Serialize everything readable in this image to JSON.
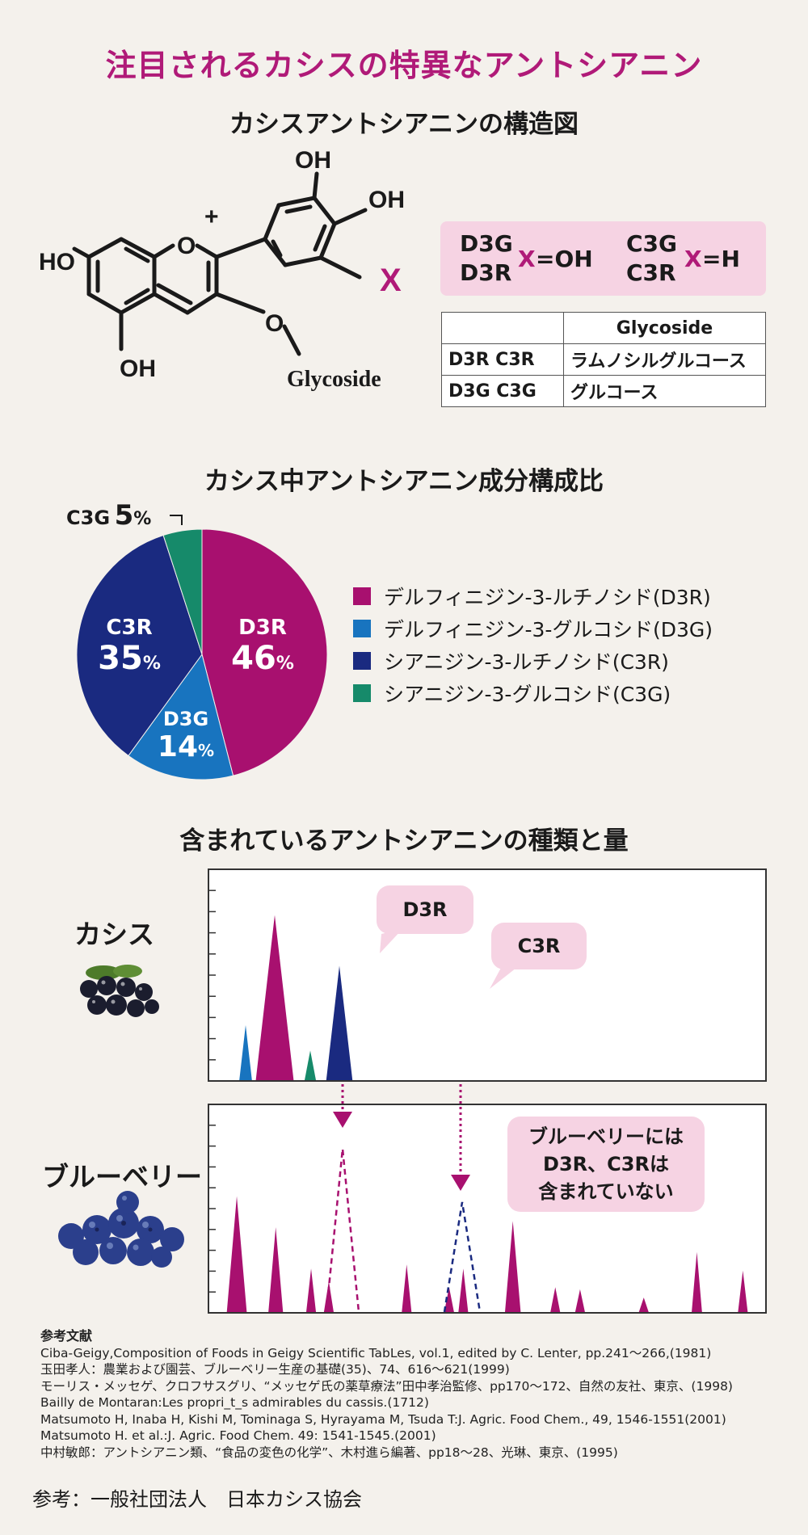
{
  "title": "注目されるカシスの特異なアントシアニン",
  "structure": {
    "heading": "カシスアントシアニンの構造図",
    "atoms": {
      "oh_top": "OH",
      "oh_right": "OH",
      "ho_left": "HO",
      "oh_bottom": "OH",
      "o_plus": "O",
      "plus": "+",
      "o_link": "O",
      "glycoside": "Glycoside",
      "x": "X"
    },
    "x_box": {
      "left_names_1": "D3G",
      "left_names_2": "D3R",
      "left_x": "X",
      "left_eq": "=OH",
      "right_names_1": "C3G",
      "right_names_2": "C3R",
      "right_x": "X",
      "right_eq": "=H"
    },
    "table": {
      "header": [
        "",
        "Glycoside"
      ],
      "rows": [
        [
          "D3R C3R",
          "ラムノシルグルコース"
        ],
        [
          "D3G C3G",
          "グルコース"
        ]
      ]
    }
  },
  "pie": {
    "heading": "カシス中アントシアニン成分構成比",
    "labels": {
      "d3r_name": "D3R",
      "d3r_num": "46",
      "d3r_pct": "%",
      "d3g_name": "D3G",
      "d3g_num": "14",
      "d3g_pct": "%",
      "c3r_name": "C3R",
      "c3r_num": "35",
      "c3r_pct": "%",
      "c3g_name": "C3G",
      "c3g_num": "5",
      "c3g_pct": "%"
    },
    "legend": [
      {
        "label": "デルフィニジン-3-ルチノシド(D3R)",
        "color": "#a8106f"
      },
      {
        "label": "デルフィニジン-3-グルコシド(D3G)",
        "color": "#1874bf"
      },
      {
        "label": "シアニジン-3-ルチノシド(C3R)",
        "color": "#1a2a80"
      },
      {
        "label": "シアニジン-3-グルコシド(C3G)",
        "color": "#168a6a"
      }
    ]
  },
  "chart_data": [
    {
      "type": "pie",
      "title": "カシス中アントシアニン成分構成比",
      "categories": [
        "D3R",
        "D3G",
        "C3R",
        "C3G"
      ],
      "values": [
        46,
        14,
        35,
        5
      ],
      "colors": [
        "#a8106f",
        "#1874bf",
        "#1a2a80",
        "#168a6a"
      ],
      "legend_position": "right"
    },
    {
      "type": "area",
      "title": "含まれているアントシアニンの種類と量",
      "panels": [
        {
          "name": "カシス",
          "peaks": [
            {
              "x": 0.23,
              "y": 0.26,
              "color": "#1874bf"
            },
            {
              "x": 0.41,
              "y": 0.78,
              "color": "#a8106f",
              "label": "D3R"
            },
            {
              "x": 0.63,
              "y": 0.14,
              "color": "#168a6a"
            },
            {
              "x": 0.81,
              "y": 0.54,
              "color": "#1a2a80",
              "label": "C3R"
            }
          ]
        },
        {
          "name": "ブルーベリー",
          "peaks": [
            {
              "x": 0.08,
              "y": 0.56
            },
            {
              "x": 0.19,
              "y": 0.41
            },
            {
              "x": 0.29,
              "y": 0.21
            },
            {
              "x": 0.34,
              "y": 0.15
            },
            {
              "x": 0.56,
              "y": 0.23
            },
            {
              "x": 0.68,
              "y": 0.12
            },
            {
              "x": 0.72,
              "y": 0.21
            },
            {
              "x": 0.86,
              "y": 0.44
            },
            {
              "x": 0.98,
              "y": 0.12
            },
            {
              "x": 1.05,
              "y": 0.11
            },
            {
              "x": 1.23,
              "y": 0.07
            },
            {
              "x": 1.38,
              "y": 0.29
            },
            {
              "x": 1.51,
              "y": 0.2
            }
          ],
          "absent_dashed": [
            "D3R",
            "C3R"
          ]
        }
      ]
    }
  ],
  "hplc": {
    "heading": "含まれているアントシアニンの種類と量",
    "cassis_label": "カシス",
    "blueberry_label": "ブルーベリー",
    "bubble_d3r": "D3R",
    "bubble_c3r": "C3R",
    "note_line1": "ブルーベリーには",
    "note_line2": "D3R、C3Rは",
    "note_line3": "含まれていない"
  },
  "references": {
    "heading": "参考文献",
    "items": [
      "Ciba-Geigy,Composition of Foods in Geigy Scientific TabLes, vol.1, edited by C. Lenter, pp.241〜266,(1981)",
      "玉田孝人：農業および園芸、ブルーベリー生産の基礎(35)、74、616〜621(1999)",
      "モーリス・メッセゲ、クロフサスグリ、“メッセゲ氏の薬草療法”田中孝治監修、pp170〜172、自然の友社、東京、(1998)",
      "Bailly de Montaran:Les propri_t_s admirables du cassis.(1712)",
      "Matsumoto H, Inaba H, Kishi M, Tominaga S, Hyrayama M, Tsuda T:J. Agric. Food Chem., 49, 1546-1551(2001)",
      "Matsumoto H. et al.:J. Agric. Food Chem. 49: 1541-1545.(2001)",
      "中村敏郎：アントシアニン類、“食品の変色の化学”、木村進ら編著、pp18〜28、光琳、東京、(1995)"
    ]
  },
  "footer": "参考：一般社団法人　日本カシス協会",
  "colors": {
    "accent": "#b01a78",
    "pink_bg": "#f6d3e3",
    "d3r": "#a8106f",
    "d3g": "#1874bf",
    "c3r": "#1a2a80",
    "c3g": "#168a6a"
  }
}
